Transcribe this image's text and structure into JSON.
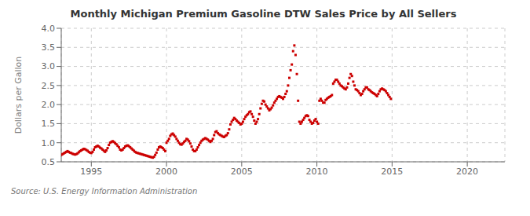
{
  "chart_data": {
    "type": "scatter",
    "title": "Monthly Michigan Premium Gasoline DTW Sales Price by All Sellers",
    "y_label": "Dollars per Gallon",
    "annotations": [
      "Source: U.S. Energy Information Administration"
    ],
    "color": "#cc0000",
    "marker": "square",
    "grid": true,
    "xlim": [
      1993.0,
      2022.5
    ],
    "xticks": [
      1995,
      2000,
      2005,
      2010,
      2015,
      2020
    ],
    "ylim": [
      0.5,
      4.0
    ],
    "yticks": [
      0.5,
      {
        "value": 1.0,
        "label": "1.0"
      },
      1.5,
      {
        "value": 2.0,
        "label": "2.0"
      },
      2.5,
      {
        "value": 3.0,
        "label": "3.0"
      },
      3.5,
      {
        "value": 4.0,
        "label": "4.0"
      }
    ],
    "x": [
      1993.0,
      1993.083,
      1993.167,
      1993.25,
      1993.333,
      1993.417,
      1993.5,
      1993.583,
      1993.667,
      1993.75,
      1993.833,
      1993.917,
      1994.0,
      1994.083,
      1994.167,
      1994.25,
      1994.333,
      1994.417,
      1994.5,
      1994.583,
      1994.667,
      1994.75,
      1994.833,
      1994.917,
      1995.0,
      1995.083,
      1995.167,
      1995.25,
      1995.333,
      1995.417,
      1995.5,
      1995.583,
      1995.667,
      1995.75,
      1995.833,
      1995.917,
      1996.0,
      1996.083,
      1996.167,
      1996.25,
      1996.333,
      1996.417,
      1996.5,
      1996.583,
      1996.667,
      1996.75,
      1996.833,
      1996.917,
      1997.0,
      1997.083,
      1997.167,
      1997.25,
      1997.333,
      1997.417,
      1997.5,
      1997.583,
      1997.667,
      1997.75,
      1997.833,
      1997.917,
      1998.0,
      1998.083,
      1998.167,
      1998.25,
      1998.333,
      1998.417,
      1998.5,
      1998.583,
      1998.667,
      1998.75,
      1998.833,
      1998.917,
      1999.0,
      1999.083,
      1999.167,
      1999.25,
      1999.333,
      1999.417,
      1999.5,
      1999.583,
      1999.667,
      1999.75,
      1999.833,
      1999.917,
      2000.0,
      2000.083,
      2000.167,
      2000.25,
      2000.333,
      2000.417,
      2000.5,
      2000.583,
      2000.667,
      2000.75,
      2000.833,
      2000.917,
      2001.0,
      2001.083,
      2001.167,
      2001.25,
      2001.333,
      2001.417,
      2001.5,
      2001.583,
      2001.667,
      2001.75,
      2001.833,
      2001.917,
      2002.0,
      2002.083,
      2002.167,
      2002.25,
      2002.333,
      2002.417,
      2002.5,
      2002.583,
      2002.667,
      2002.75,
      2002.833,
      2002.917,
      2003.0,
      2003.083,
      2003.167,
      2003.25,
      2003.333,
      2003.417,
      2003.5,
      2003.583,
      2003.667,
      2003.75,
      2003.833,
      2003.917,
      2004.0,
      2004.083,
      2004.167,
      2004.25,
      2004.333,
      2004.417,
      2004.5,
      2004.583,
      2004.667,
      2004.75,
      2004.833,
      2004.917,
      2005.0,
      2005.083,
      2005.167,
      2005.25,
      2005.333,
      2005.417,
      2005.5,
      2005.583,
      2005.667,
      2005.75,
      2005.833,
      2005.917,
      2006.0,
      2006.083,
      2006.167,
      2006.25,
      2006.333,
      2006.417,
      2006.5,
      2006.583,
      2006.667,
      2006.75,
      2006.833,
      2006.917,
      2007.0,
      2007.083,
      2007.167,
      2007.25,
      2007.333,
      2007.417,
      2007.5,
      2007.583,
      2007.667,
      2007.75,
      2007.833,
      2007.917,
      2008.0,
      2008.083,
      2008.167,
      2008.25,
      2008.333,
      2008.417,
      2008.5,
      2008.583,
      2008.667,
      2008.75,
      2008.833,
      2008.917,
      2009.0,
      2009.083,
      2009.167,
      2009.25,
      2009.333,
      2009.417,
      2009.5,
      2009.583,
      2009.667,
      2009.75,
      2009.833,
      2009.917,
      2010.0,
      2010.083,
      2010.167,
      2010.25,
      2010.333,
      2010.417,
      2010.5,
      2010.583,
      2010.667,
      2010.75,
      2010.833,
      2010.917,
      2011.0,
      2011.083,
      2011.167,
      2011.25,
      2011.333,
      2011.417,
      2011.5,
      2011.583,
      2011.667,
      2011.75,
      2011.833,
      2011.917,
      2012.0,
      2012.083,
      2012.167,
      2012.25,
      2012.333,
      2012.417,
      2012.5,
      2012.583,
      2012.667,
      2012.75,
      2012.833,
      2012.917,
      2013.0,
      2013.083,
      2013.167,
      2013.25,
      2013.333,
      2013.417,
      2013.5,
      2013.583,
      2013.667,
      2013.75,
      2013.833,
      2013.917,
      2014.0,
      2014.083,
      2014.167,
      2014.25,
      2014.333,
      2014.417,
      2014.5,
      2014.583,
      2014.667,
      2014.75,
      2014.833,
      2014.917
    ],
    "values": [
      0.68,
      0.7,
      0.72,
      0.74,
      0.76,
      0.78,
      0.76,
      0.74,
      0.73,
      0.71,
      0.7,
      0.69,
      0.7,
      0.72,
      0.75,
      0.78,
      0.8,
      0.82,
      0.84,
      0.83,
      0.81,
      0.79,
      0.76,
      0.74,
      0.73,
      0.76,
      0.82,
      0.88,
      0.9,
      0.92,
      0.9,
      0.87,
      0.85,
      0.82,
      0.79,
      0.76,
      0.8,
      0.86,
      0.94,
      1.0,
      1.02,
      1.04,
      1.02,
      0.99,
      0.96,
      0.92,
      0.88,
      0.82,
      0.8,
      0.82,
      0.86,
      0.9,
      0.92,
      0.93,
      0.91,
      0.88,
      0.85,
      0.82,
      0.79,
      0.76,
      0.74,
      0.73,
      0.72,
      0.71,
      0.7,
      0.69,
      0.68,
      0.67,
      0.66,
      0.65,
      0.64,
      0.63,
      0.62,
      0.61,
      0.63,
      0.68,
      0.74,
      0.82,
      0.88,
      0.9,
      0.88,
      0.86,
      0.82,
      0.78,
      1.0,
      1.05,
      1.1,
      1.18,
      1.22,
      1.24,
      1.2,
      1.16,
      1.1,
      1.05,
      1.0,
      0.96,
      0.95,
      0.98,
      1.02,
      1.05,
      1.1,
      1.08,
      1.04,
      0.98,
      0.9,
      0.82,
      0.78,
      0.78,
      0.82,
      0.88,
      0.94,
      1.0,
      1.05,
      1.08,
      1.1,
      1.12,
      1.1,
      1.08,
      1.05,
      1.02,
      1.05,
      1.1,
      1.2,
      1.28,
      1.3,
      1.25,
      1.22,
      1.2,
      1.18,
      1.16,
      1.15,
      1.18,
      1.2,
      1.25,
      1.35,
      1.48,
      1.55,
      1.6,
      1.65,
      1.62,
      1.58,
      1.55,
      1.52,
      1.48,
      1.5,
      1.55,
      1.62,
      1.68,
      1.72,
      1.75,
      1.8,
      1.82,
      1.75,
      1.68,
      1.58,
      1.5,
      1.55,
      1.62,
      1.75,
      1.9,
      2.02,
      2.1,
      2.08,
      2.0,
      1.95,
      1.9,
      1.85,
      1.88,
      1.92,
      1.98,
      2.05,
      2.1,
      2.15,
      2.2,
      2.22,
      2.2,
      2.18,
      2.15,
      2.2,
      2.28,
      2.35,
      2.5,
      2.7,
      2.9,
      3.05,
      3.4,
      3.55,
      3.3,
      2.8,
      2.1,
      1.55,
      1.5,
      1.55,
      1.6,
      1.65,
      1.7,
      1.72,
      1.7,
      1.6,
      1.55,
      1.5,
      1.52,
      1.58,
      1.62,
      1.55,
      1.5,
      2.1,
      2.15,
      2.1,
      2.05,
      2.05,
      2.12,
      2.15,
      2.18,
      2.2,
      2.22,
      2.25,
      2.55,
      2.6,
      2.65,
      2.65,
      2.6,
      2.55,
      2.5,
      2.48,
      2.45,
      2.42,
      2.4,
      2.45,
      2.55,
      2.7,
      2.8,
      2.75,
      2.6,
      2.5,
      2.4,
      2.38,
      2.35,
      2.3,
      2.25,
      2.28,
      2.35,
      2.4,
      2.45,
      2.45,
      2.4,
      2.38,
      2.35,
      2.32,
      2.3,
      2.28,
      2.25,
      2.22,
      2.28,
      2.35,
      2.4,
      2.42,
      2.4,
      2.38,
      2.35,
      2.3,
      2.25,
      2.2,
      2.15
    ]
  }
}
